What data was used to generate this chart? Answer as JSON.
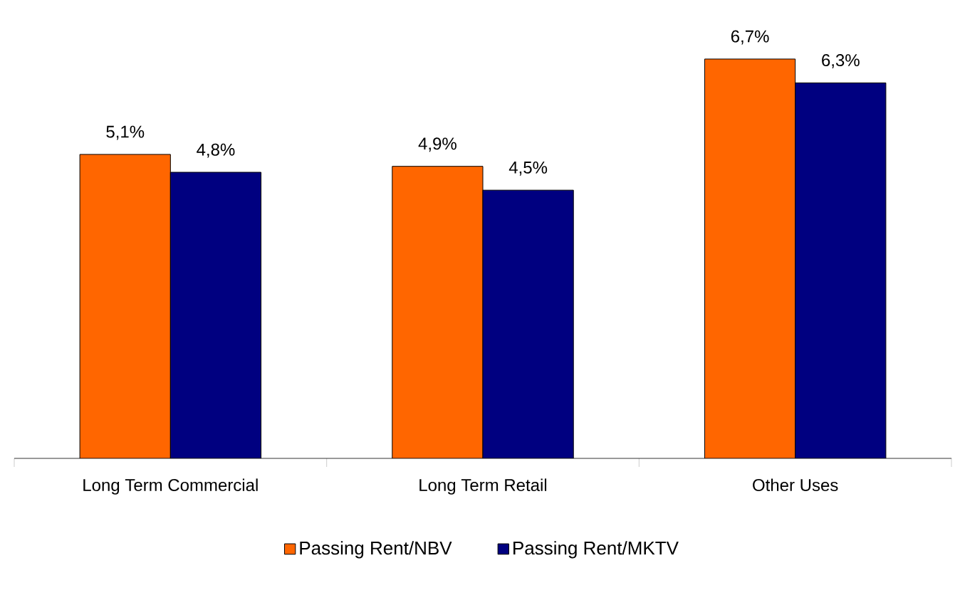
{
  "chart_data": {
    "type": "bar",
    "categories": [
      "Long Term Commercial",
      "Long Term Retail",
      "Other Uses"
    ],
    "series": [
      {
        "name": "Passing Rent/NBV",
        "color": "#ff6600",
        "values": [
          5.1,
          4.9,
          6.7
        ],
        "value_labels": [
          "5,1%",
          "4,9%",
          "6,7%"
        ]
      },
      {
        "name": "Passing Rent/MKTV",
        "color": "#000080",
        "values": [
          4.8,
          4.5,
          6.3
        ],
        "value_labels": [
          "4,8%",
          "4,5%",
          "6,3%"
        ]
      }
    ],
    "legend": "bottom",
    "grid": false
  }
}
